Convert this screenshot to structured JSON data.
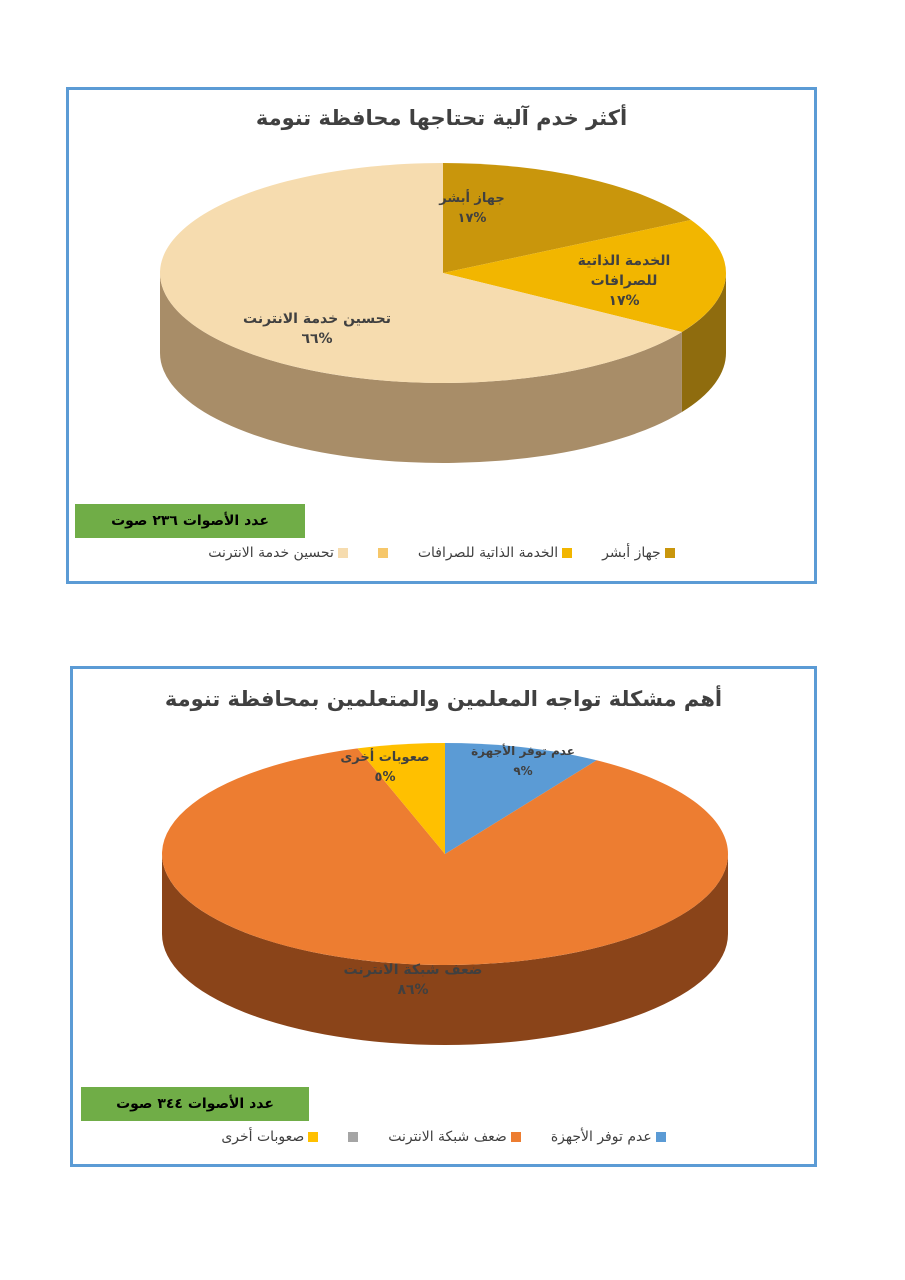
{
  "chart_data": [
    {
      "type": "pie",
      "title": "أكثر خدم آلية تحتاجها محافظة تنومة",
      "votes_label": "عدد الأصوات ٢٣٦ صوت",
      "slices": [
        {
          "legend": "جهاز أبشر",
          "label_lines": [
            "جهاز أبشر"
          ],
          "percent_label": "١٧%",
          "value": 17,
          "color": "#c9960c",
          "side_color": "#8a6a12"
        },
        {
          "legend": "الخدمة الذاتية للصرافات",
          "label_lines": [
            "الخدمة الذاتية",
            "للصرافات"
          ],
          "percent_label": "١٧%",
          "value": 17,
          "color": "#f2b600",
          "side_color": "#8f6c0e"
        },
        {
          "legend": "",
          "label_lines": [],
          "percent_label": "",
          "value": 0,
          "color": "#f6c76a",
          "side_color": "#8f6c0e"
        },
        {
          "legend": "تحسين خدمة الانترنت",
          "label_lines": [
            "تحسين خدمة الانترنت"
          ],
          "percent_label": "٦٦%",
          "value": 66,
          "color": "#f6dcaf",
          "side_color": "#a88d68"
        }
      ]
    },
    {
      "type": "pie",
      "title": "أهم مشكلة تواجه المعلمين والمتعلمين بمحافظة تنومة",
      "votes_label": "عدد الأصوات ٣٤٤ صوت",
      "slices": [
        {
          "legend": "عدم توفر الأجهزة",
          "label_lines": [
            "عدم توفر الأجهزة"
          ],
          "percent_label": "٩%",
          "value": 9,
          "color": "#5b9bd5",
          "side_color": "#3d6e9c"
        },
        {
          "legend": "ضعف شبكة الانترنت",
          "label_lines": [
            "ضعف شبكة الانترنت"
          ],
          "percent_label": "٨٦%",
          "value": 86,
          "color": "#ed7d31",
          "side_color": "#8a4419"
        },
        {
          "legend": "",
          "label_lines": [],
          "percent_label": "",
          "value": 0,
          "color": "#a5a5a5",
          "side_color": "#777777"
        },
        {
          "legend": "صعوبات أخرى",
          "label_lines": [
            "صعوبات أخرى"
          ],
          "percent_label": "٥%",
          "value": 5,
          "color": "#ffc000",
          "side_color": "#a17a00"
        }
      ]
    }
  ]
}
